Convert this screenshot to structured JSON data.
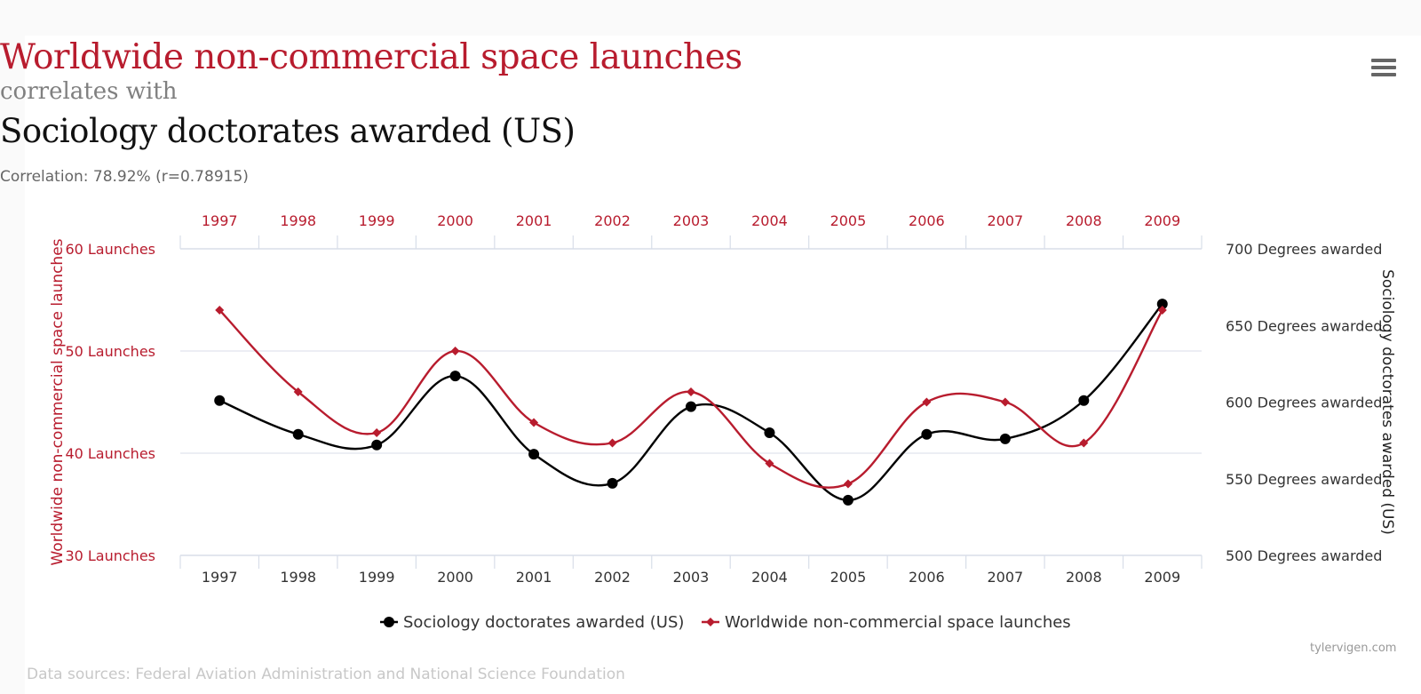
{
  "header": {
    "title": "Worldwide non-commercial space launches",
    "connector": "correlates with",
    "subtitle": "Sociology doctorates awarded (US)",
    "correlation": "Correlation: 78.92% (r=0.78915)"
  },
  "menu": {
    "icon": "hamburger-menu-icon",
    "label": "Chart context menu"
  },
  "footer": {
    "sources": "Data sources: Federal Aviation Administration and National Science Foundation",
    "credit": "tylervigen.com"
  },
  "colors": {
    "launches": "#b81c2e",
    "degrees": "#000000",
    "grid": "#d8dee9",
    "axis_text_right": "#333333"
  },
  "chart_data": {
    "type": "line",
    "title": "Worldwide non-commercial space launches",
    "subtitle": "Sociology doctorates awarded (US)",
    "categories": [
      "1997",
      "1998",
      "1999",
      "2000",
      "2001",
      "2002",
      "2003",
      "2004",
      "2005",
      "2006",
      "2007",
      "2008",
      "2009"
    ],
    "series": [
      {
        "name": "Sociology doctorates awarded (US)",
        "axis": "right",
        "color": "#000000",
        "marker": "circle",
        "values": [
          601,
          579,
          572,
          617,
          566,
          547,
          597,
          580,
          536,
          579,
          576,
          601,
          664
        ]
      },
      {
        "name": "Worldwide non-commercial space launches",
        "axis": "left",
        "color": "#b81c2e",
        "marker": "diamond",
        "values": [
          54,
          46,
          42,
          50,
          43,
          41,
          46,
          39,
          37,
          45,
          45,
          41,
          54
        ]
      }
    ],
    "y_left": {
      "label": "Worldwide non-commercial space launches",
      "range": [
        30,
        60
      ],
      "ticks": [
        60,
        50,
        40,
        30
      ],
      "tick_labels": [
        "60 Launches",
        "50 Launches",
        "40 Launches",
        "30 Launches"
      ]
    },
    "y_right": {
      "label": "Sociology doctorates awarded (US)",
      "range": [
        500,
        700
      ],
      "ticks": [
        700,
        650,
        600,
        550,
        500
      ],
      "tick_labels": [
        "700 Degrees awarded",
        "650 Degrees awarded",
        "600 Degrees awarded",
        "550 Degrees awarded",
        "500 Degrees awarded"
      ]
    },
    "x_top_labels_color": "#b81c2e",
    "grid": true,
    "legend": {
      "position": "bottom-center",
      "items": [
        "Sociology doctorates awarded (US)",
        "Worldwide non-commercial space launches"
      ]
    }
  }
}
